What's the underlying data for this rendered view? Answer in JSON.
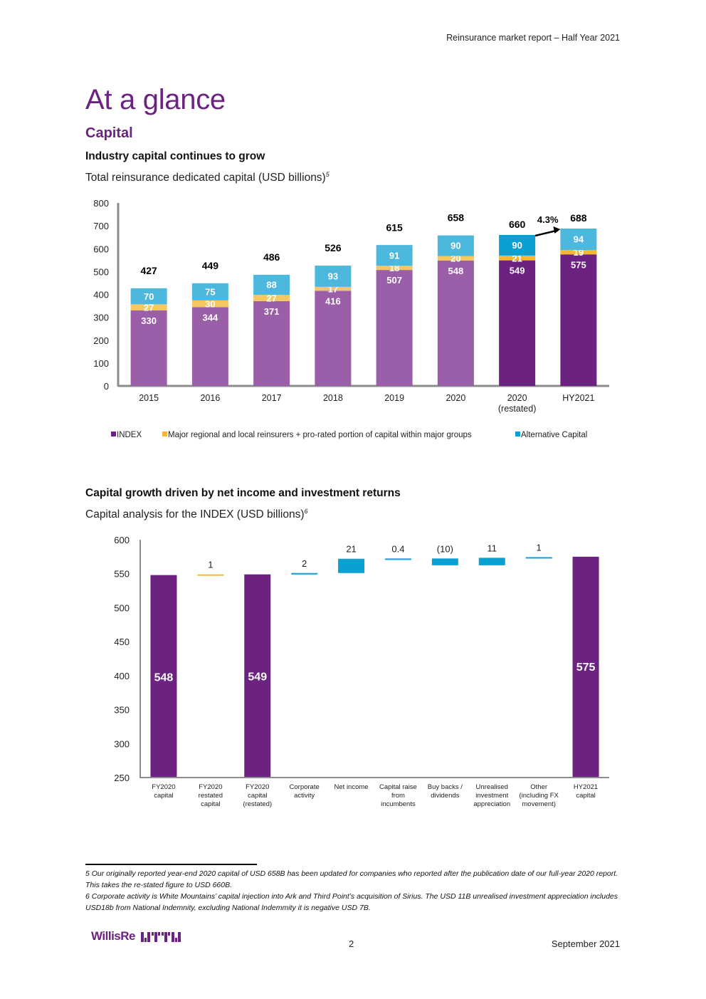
{
  "header": {
    "report_title": "Reinsurance market report – Half Year 2021"
  },
  "page": {
    "title": "At a glance",
    "section": "Capital"
  },
  "chart1": {
    "heading": "Industry capital continues to grow",
    "subtitle": "Total reinsurance dedicated capital (USD billions)",
    "subtitle_footnote": "5"
  },
  "chart2": {
    "heading": "Capital growth driven by net income and investment returns",
    "subtitle": "Capital analysis for the INDEX (USD billions)",
    "subtitle_footnote": "6"
  },
  "chart_data": [
    {
      "type": "bar",
      "stacked": true,
      "title": "Total reinsurance dedicated capital (USD billions)",
      "xlabel": "",
      "ylabel": "",
      "ylim": [
        0,
        800
      ],
      "yticks": [
        0,
        100,
        200,
        300,
        400,
        500,
        600,
        700,
        800
      ],
      "grid": false,
      "legend_position": "bottom",
      "categories": [
        "2015",
        "2016",
        "2017",
        "2018",
        "2019",
        "2020",
        "2020\n(restated)",
        "HY2021"
      ],
      "category_lines": [
        [
          "2015"
        ],
        [
          "2016"
        ],
        [
          "2017"
        ],
        [
          "2018"
        ],
        [
          "2019"
        ],
        [
          "2020"
        ],
        [
          "2020",
          "(restated)"
        ],
        [
          "HY2021"
        ]
      ],
      "series": [
        {
          "name": "INDEX",
          "color": "#9a5fa8",
          "highlight_color": "#6b2281",
          "values": [
            330,
            344,
            371,
            416,
            507,
            548,
            549,
            575
          ]
        },
        {
          "name": "Major regional and local reinsurers + pro-rated portion of capital within major groups",
          "color": "#f5c760",
          "highlight_color": "#f5b731",
          "values": [
            27,
            30,
            27,
            17,
            18,
            20,
            21,
            19
          ]
        },
        {
          "name": "Alternative Capital",
          "color": "#4cb8dd",
          "highlight_color": "#0aa0d2",
          "values": [
            70,
            75,
            88,
            93,
            91,
            90,
            90,
            94
          ]
        }
      ],
      "totals": [
        427,
        449,
        486,
        526,
        615,
        658,
        660,
        688
      ],
      "highlighted_categories": [
        6
      ],
      "annotation": {
        "text": "4.3%",
        "from_category": 6,
        "to_category": 7
      }
    },
    {
      "type": "bar",
      "subtype": "waterfall",
      "title": "Capital analysis for the INDEX (USD billions)",
      "xlabel": "",
      "ylabel": "",
      "ylim": [
        250,
        600
      ],
      "yticks": [
        250,
        300,
        350,
        400,
        450,
        500,
        550,
        600
      ],
      "grid": false,
      "categories": [
        "FY2020 capital",
        "FY2020 restated capital",
        "FY2020 capital (restated)",
        "Corporate activity",
        "Net income",
        "Capital raise from incumbents",
        "Buy backs / dividends",
        "Unrealised investment appreciation",
        "Other (including FX movement)",
        "HY2021 capital"
      ],
      "category_lines": [
        [
          "FY2020",
          "capital"
        ],
        [
          "FY2020",
          "restated",
          "capital"
        ],
        [
          "FY2020",
          "capital",
          "(restated)"
        ],
        [
          "Corporate",
          "activity"
        ],
        [
          "Net income"
        ],
        [
          "Capital raise",
          "from",
          "incumbents"
        ],
        [
          "Buy backs /",
          "dividends"
        ],
        [
          "Unrealised",
          "investment",
          "appreciation"
        ],
        [
          "Other",
          "(including FX",
          "movement)"
        ],
        [
          "HY2021",
          "capital"
        ]
      ],
      "kinds": [
        "total",
        "step",
        "total",
        "step",
        "step",
        "step",
        "step",
        "step",
        "step",
        "total"
      ],
      "values": [
        548,
        1,
        549,
        2,
        21,
        0.4,
        -10,
        11,
        1,
        575
      ],
      "labels": [
        "548",
        "1",
        "549",
        "2",
        "21",
        "0.4",
        "(10)",
        "11",
        "1",
        "575"
      ],
      "colors": {
        "total": "#6b2281",
        "restatement": "#f5b731",
        "step": "#0aa0d2"
      },
      "step_colors": [
        "total",
        "restatement",
        "total",
        "step",
        "step",
        "step",
        "step",
        "step",
        "step",
        "total"
      ]
    }
  ],
  "footnotes": [
    "5 Our originally reported year-end 2020 capital of USD 658B has been updated for companies who reported after the publication date of our full-year 2020 report.  This takes the re-stated figure to USD 660B.",
    "6 Corporate activity is White Mountains’ capital injection into Ark and Third Point’s acquisition of Sirius. The USD 11B unrealised investment appreciation includes USD18b from National Indemnity, excluding National Indemmity it is negative USD 7B."
  ],
  "footer": {
    "logo_text": "WillisRe",
    "logo_mark": "wtw-logo-icon",
    "page_number": "2",
    "date": "September 2021"
  }
}
